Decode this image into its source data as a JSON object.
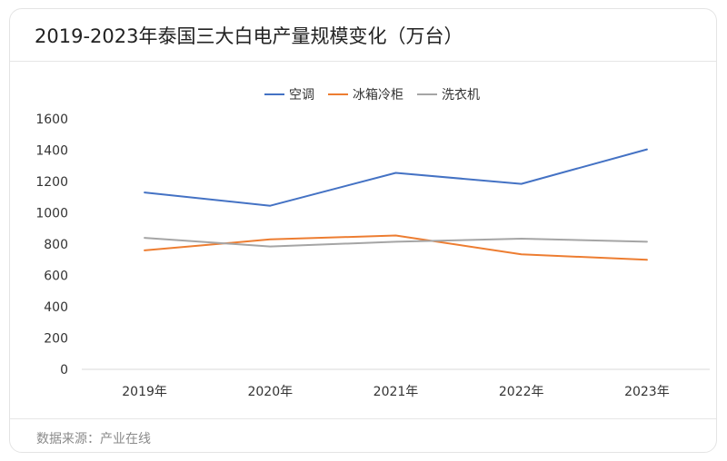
{
  "title": "2019-2023年泰国三大白电产量规模变化（万台）",
  "footer": "数据来源：产业在线",
  "chart_data": {
    "type": "line",
    "title": "2019-2023年泰国三大白电产量规模变化（万台）",
    "xlabel": "",
    "ylabel": "",
    "categories": [
      "2019年",
      "2020年",
      "2021年",
      "2022年",
      "2023年"
    ],
    "yticks": [
      0,
      200,
      400,
      600,
      800,
      1000,
      1200,
      1400,
      1600
    ],
    "ylim": [
      0,
      1600
    ],
    "grid": false,
    "legend_position": "top",
    "series": [
      {
        "name": "空调",
        "color": "#4472C4",
        "values": [
          1130,
          1045,
          1255,
          1185,
          1405
        ]
      },
      {
        "name": "冰箱冷柜",
        "color": "#ED7D31",
        "values": [
          760,
          830,
          855,
          735,
          700
        ]
      },
      {
        "name": "洗衣机",
        "color": "#A5A5A5",
        "values": [
          840,
          785,
          815,
          835,
          815
        ]
      }
    ]
  }
}
